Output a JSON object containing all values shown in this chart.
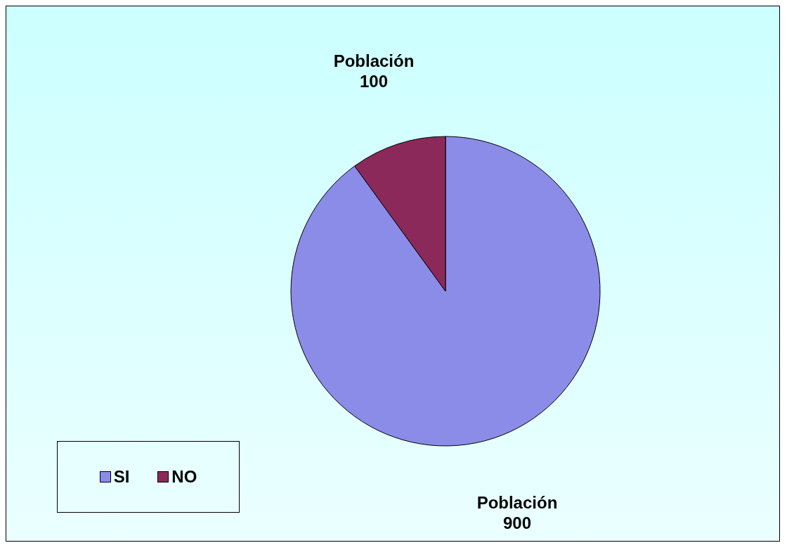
{
  "chart_data": {
    "type": "pie",
    "categories": [
      "SI",
      "NO"
    ],
    "series": [
      {
        "name": "Población",
        "values": [
          900,
          100
        ]
      }
    ],
    "colors": [
      "#8b8ce8",
      "#8b2a5a"
    ],
    "data_labels": true,
    "legend": "bottom left"
  }
}
